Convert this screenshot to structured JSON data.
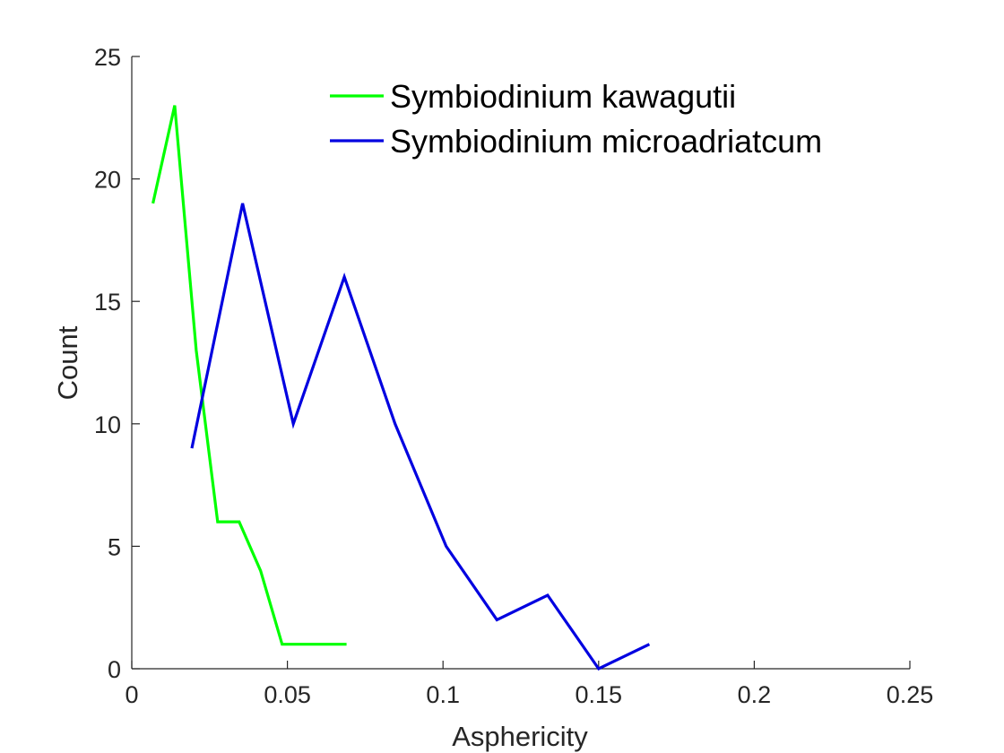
{
  "chart_data": {
    "type": "line",
    "title": "",
    "xlabel": "Asphericity",
    "ylabel": "Count",
    "xlim": [
      0,
      0.25
    ],
    "ylim": [
      0,
      25
    ],
    "xticks": [
      0,
      0.05,
      0.1,
      0.15,
      0.2,
      0.25
    ],
    "xtick_labels": [
      "0",
      "0.05",
      "0.1",
      "0.15",
      "0.2",
      "0.25"
    ],
    "yticks": [
      0,
      5,
      10,
      15,
      20,
      25
    ],
    "ytick_labels": [
      "0",
      "5",
      "10",
      "15",
      "20",
      "25"
    ],
    "grid": false,
    "legend_position": "top-right",
    "series": [
      {
        "name": "Symbiodinium kawagutii",
        "color": "#00ff00",
        "x": [
          0.0068,
          0.0138,
          0.0207,
          0.0276,
          0.0345,
          0.0414,
          0.0483,
          0.0552,
          0.0621,
          0.069
        ],
        "y": [
          19,
          23,
          13,
          6,
          6,
          4,
          1,
          1,
          1,
          1
        ]
      },
      {
        "name": "Symbiodinium microadriatcum",
        "color": "#0000e0",
        "x": [
          0.0193,
          0.0356,
          0.0519,
          0.0683,
          0.0846,
          0.101,
          0.1173,
          0.1336,
          0.15,
          0.1663
        ],
        "y": [
          9,
          19,
          10,
          16,
          10,
          5,
          2,
          3,
          0,
          1
        ]
      }
    ]
  }
}
